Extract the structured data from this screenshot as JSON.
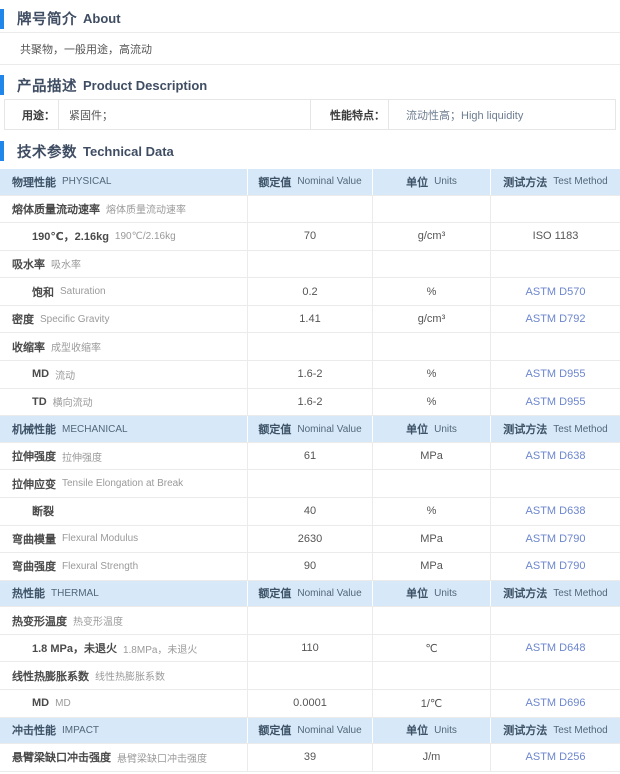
{
  "colors": {
    "accent": "#2086ea",
    "table_header_bg": "#d7e9f9",
    "link_blue": "#6c86ce"
  },
  "about": {
    "title_zh": "牌号简介",
    "title_en": "About",
    "content": "共聚物，一般用途，高流动"
  },
  "description": {
    "title_zh": "产品描述",
    "title_en": "Product Description",
    "fields": [
      {
        "label": "用途：",
        "value": "紧固件；"
      },
      {
        "label": "性能特点：",
        "value": "流动性高；High liquidity"
      }
    ]
  },
  "technical": {
    "title_zh": "技术参数",
    "title_en": "Technical Data",
    "header_labels": {
      "value_zh": "额定值",
      "value_en": "Nominal Value",
      "units_zh": "单位",
      "units_en": "Units",
      "method_zh": "测试方法",
      "method_en": "Test Method"
    },
    "rows": [
      {
        "type": "section",
        "zh": "物理性能",
        "en": "PHYSICAL"
      },
      {
        "type": "group",
        "zh": "熔体质量流动速率",
        "en": "熔体质量流动速率"
      },
      {
        "type": "sub",
        "zh": "190℃，2.16kg",
        "en": "190℃/2.16kg",
        "value": "70",
        "units": "g/cm³",
        "method": "ISO 1183",
        "link": false
      },
      {
        "type": "group",
        "zh": "吸水率",
        "en": "吸水率"
      },
      {
        "type": "sub",
        "zh": "饱和",
        "en": "Saturation",
        "value": "0.2",
        "units": "%",
        "method": "ASTM D570",
        "link": true
      },
      {
        "type": "prop",
        "zh": "密度",
        "en": "Specific Gravity",
        "value": "1.41",
        "units": "g/cm³",
        "method": "ASTM D792",
        "link": true
      },
      {
        "type": "group",
        "zh": "收缩率",
        "en": "成型收缩率"
      },
      {
        "type": "sub",
        "zh": "MD",
        "en": "流动",
        "value": "1.6-2",
        "units": "%",
        "method": "ASTM D955",
        "link": true
      },
      {
        "type": "sub",
        "zh": "TD",
        "en": "横向流动",
        "value": "1.6-2",
        "units": "%",
        "method": "ASTM D955",
        "link": true
      },
      {
        "type": "section",
        "zh": "机械性能",
        "en": "MECHANICAL"
      },
      {
        "type": "prop",
        "zh": "拉伸强度",
        "en": "拉伸强度",
        "value": "61",
        "units": "MPa",
        "method": "ASTM D638",
        "link": true
      },
      {
        "type": "group",
        "zh": "拉伸应变",
        "en": "Tensile Elongation at Break"
      },
      {
        "type": "sub",
        "zh": "断裂",
        "en": "",
        "value": "40",
        "units": "%",
        "method": "ASTM D638",
        "link": true
      },
      {
        "type": "prop",
        "zh": "弯曲模量",
        "en": "Flexural Modulus",
        "value": "2630",
        "units": "MPa",
        "method": "ASTM D790",
        "link": true
      },
      {
        "type": "prop",
        "zh": "弯曲强度",
        "en": "Flexural Strength",
        "value": "90",
        "units": "MPa",
        "method": "ASTM D790",
        "link": true
      },
      {
        "type": "section",
        "zh": "热性能",
        "en": "THERMAL"
      },
      {
        "type": "group",
        "zh": "热变形温度",
        "en": "热变形温度"
      },
      {
        "type": "sub",
        "zh": "1.8 MPa，未退火",
        "en": "1.8MPa，未退火",
        "value": "110",
        "units": "℃",
        "method": "ASTM D648",
        "link": true
      },
      {
        "type": "group",
        "zh": "线性热膨胀系数",
        "en": "线性热膨胀系数"
      },
      {
        "type": "sub",
        "zh": "MD",
        "en": "MD",
        "value": "0.0001",
        "units": "1/℃",
        "method": "ASTM D696",
        "link": true
      },
      {
        "type": "section",
        "zh": "冲击性能",
        "en": "IMPACT"
      },
      {
        "type": "prop",
        "zh": "悬臂梁缺口冲击强度",
        "en": "悬臂梁缺口冲击强度",
        "value": "39",
        "units": "J/m",
        "method": "ASTM D256",
        "link": true
      }
    ]
  }
}
